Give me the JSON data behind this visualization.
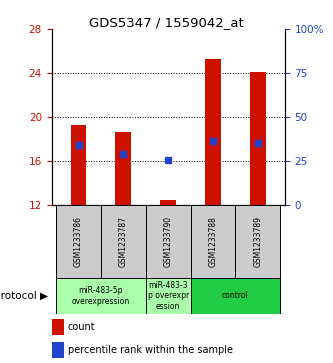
{
  "title": "GDS5347 / 1559042_at",
  "samples": [
    "GSM1233786",
    "GSM1233787",
    "GSM1233790",
    "GSM1233788",
    "GSM1233789"
  ],
  "bar_bottoms": [
    12,
    12,
    12,
    12,
    12
  ],
  "bar_tops": [
    19.3,
    18.6,
    12.5,
    25.3,
    24.1
  ],
  "blue_markers": [
    17.5,
    16.6,
    16.1,
    17.8,
    17.6
  ],
  "ylim_left": [
    12,
    28
  ],
  "ylim_right": [
    0,
    100
  ],
  "yticks_left": [
    12,
    16,
    20,
    24,
    28
  ],
  "yticks_right": [
    0,
    25,
    50,
    75,
    100
  ],
  "ytick_labels_right": [
    "0",
    "25",
    "50",
    "75",
    "100%"
  ],
  "bar_color": "#cc1100",
  "marker_color": "#2244cc",
  "groups": [
    {
      "label": "miR-483-5p\noverexpression",
      "indices": [
        0,
        1
      ],
      "color": "#aaffaa"
    },
    {
      "label": "miR-483-3\np overexpr\nession",
      "indices": [
        2
      ],
      "color": "#aaffaa"
    },
    {
      "label": "control",
      "indices": [
        3,
        4
      ],
      "color": "#22cc44"
    }
  ],
  "protocol_label": "protocol",
  "legend_count_label": "count",
  "legend_percentile_label": "percentile rank within the sample",
  "axis_color_left": "#cc1100",
  "axis_color_right": "#2244cc",
  "grid_dotted_at": [
    16,
    20,
    24
  ],
  "bar_width": 0.35
}
